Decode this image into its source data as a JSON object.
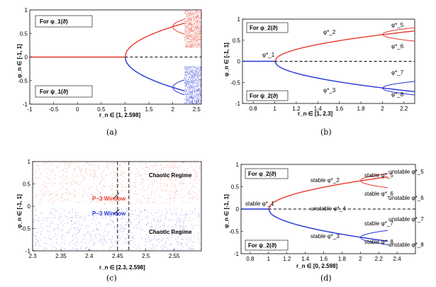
{
  "colors": {
    "red": "#e8392b",
    "blue": "#2433d9",
    "black": "#000000"
  },
  "chart_data": [
    {
      "id": "a",
      "type": "scatter",
      "caption": "(a)",
      "xlabel": "r_n ∈ [1, 2.598]",
      "ylabel": "φ_n ∈ [-1, 1]",
      "xlim": [
        -1,
        2.6
      ],
      "ylim": [
        -1,
        1
      ],
      "xticks": [
        "-1",
        "-0.5",
        "0",
        "0.5",
        "1",
        "1.5",
        "2",
        "2.5"
      ],
      "yticks": [
        "1",
        "0.5",
        "0",
        "-0.5",
        "-1"
      ],
      "labels": [
        "For φ_1(ϑ)",
        "For ψ_1(ϑ)"
      ],
      "series": [
        {
          "kind": "line",
          "color": "red",
          "dash": false,
          "points": [
            [
              -1,
              0
            ],
            [
              1,
              0
            ]
          ]
        },
        {
          "kind": "line",
          "color": "black",
          "dash": true,
          "points": [
            [
              1,
              0
            ],
            [
              2.6,
              0
            ]
          ]
        },
        {
          "kind": "branch",
          "color": "red",
          "r0": 1,
          "r1": 2.25,
          "amp": 0.72
        },
        {
          "kind": "branch",
          "color": "blue",
          "r0": 1,
          "r1": 2.25,
          "amp": -0.72
        },
        {
          "kind": "cloud",
          "color": "red",
          "xr": [
            2.25,
            2.6
          ],
          "yr": [
            0.2,
            1
          ]
        },
        {
          "kind": "cloud",
          "color": "blue",
          "xr": [
            2.25,
            2.6
          ],
          "yr": [
            -1,
            -0.2
          ]
        }
      ]
    },
    {
      "id": "b",
      "type": "line",
      "caption": "(b)",
      "xlabel": "r_n ∈ [1, 2.3]",
      "ylabel": "φ_n ∈ [-1, 1]",
      "xlim": [
        0.7,
        2.3
      ],
      "ylim": [
        -1,
        1
      ],
      "xticks": [
        "0.8",
        "1",
        "1.2",
        "1.4",
        "1.6",
        "1.8",
        "2",
        "2.2"
      ],
      "yticks": [
        "1",
        "0.5",
        "0",
        "-0.5",
        "-1"
      ],
      "labels": [
        "For φ_2(ϑ)",
        "For ψ_2(ϑ)",
        "φ*_1",
        "φ*_2",
        "φ*_3",
        "φ*_5",
        "φ*_6",
        "φ*_7",
        "φ*_8"
      ],
      "series": [
        {
          "kind": "line",
          "color": "blue",
          "dash": false,
          "points": [
            [
              0.7,
              0
            ],
            [
              1,
              0
            ]
          ]
        },
        {
          "kind": "line",
          "color": "black",
          "dash": true,
          "points": [
            [
              1,
              0
            ],
            [
              2.3,
              0
            ]
          ]
        },
        {
          "kind": "branch",
          "color": "red",
          "r0": 1,
          "r1": 2.3,
          "amp": 0.72
        },
        {
          "kind": "branch",
          "color": "blue",
          "r0": 1,
          "r1": 2.3,
          "amp": -0.72
        }
      ]
    },
    {
      "id": "c",
      "type": "scatter",
      "caption": "(c)",
      "xlabel": "r_n ∈ [2.3, 2.598]",
      "ylabel": "φ_n ∈ [-1, 1]",
      "xlim": [
        2.3,
        2.598
      ],
      "ylim": [
        -1,
        1
      ],
      "xticks": [
        "2.3",
        "2.35",
        "2.4",
        "2.45",
        "2.5",
        "2.55"
      ],
      "yticks": [
        "1",
        "0.5",
        "0",
        "-0.5",
        "-1"
      ],
      "annotations": [
        "Chaotic Regime",
        "Chaotic Regime",
        "P−3 Window",
        "P−3 Window"
      ],
      "series": [
        {
          "kind": "cloud",
          "color": "red",
          "xr": [
            2.3,
            2.598
          ],
          "yr": [
            0.05,
            1
          ]
        },
        {
          "kind": "cloud",
          "color": "blue",
          "xr": [
            2.3,
            2.598
          ],
          "yr": [
            -1,
            -0.05
          ]
        }
      ],
      "vlines": [
        2.45,
        2.47
      ]
    },
    {
      "id": "d",
      "type": "line",
      "caption": "(d)",
      "xlabel": "r_n ∈ [0, 2.598]",
      "ylabel": "φ_n ∈ [-1, 1]",
      "xlim": [
        0.7,
        2.6
      ],
      "ylim": [
        -1,
        1
      ],
      "xticks": [
        "0.8",
        "1",
        "1.2",
        "1.4",
        "1.6",
        "1.8",
        "2",
        "2.2",
        "2.4"
      ],
      "yticks": [
        "1",
        "0.5",
        "0",
        "-0.5",
        "-1"
      ],
      "labels": [
        "For φ_2(ϑ)",
        "For ψ_2(ϑ)",
        "stable φ*_1",
        "stable φ*_2",
        "stable φ*_3",
        "unstable φ*_4",
        "stable φ*_5",
        "stable φ*_6",
        "stable φ*_7",
        "stable φ*_8",
        "unstable φ*_5",
        "unstable φ*_6",
        "unstable φ*_7",
        "unstable φ*_8"
      ],
      "series": [
        {
          "kind": "line",
          "color": "blue",
          "dash": false,
          "points": [
            [
              0.7,
              0
            ],
            [
              1,
              0
            ]
          ]
        },
        {
          "kind": "line",
          "color": "black",
          "dash": true,
          "points": [
            [
              1,
              0
            ],
            [
              2.6,
              0
            ]
          ]
        },
        {
          "kind": "branch",
          "color": "red",
          "r0": 1,
          "r1": 2.3,
          "amp": 0.72
        },
        {
          "kind": "branch",
          "color": "blue",
          "r0": 1,
          "r1": 2.3,
          "amp": -0.72
        }
      ]
    }
  ]
}
